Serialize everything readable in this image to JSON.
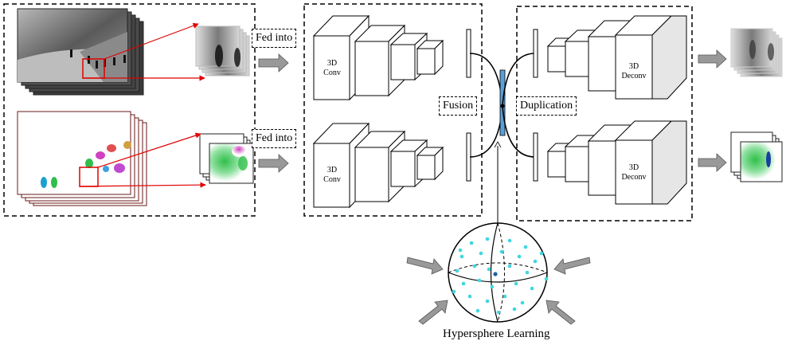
{
  "labels": {
    "fed_into": "Fed into",
    "fusion": "Fusion",
    "duplication": "Duplication",
    "hypersphere": "Hypersphere Learning",
    "conv_line1": "3D",
    "conv_line2": "Conv",
    "deconv_line1": "3D",
    "deconv_line2": "Deconv"
  },
  "colors": {
    "point": "#3fd7e0",
    "center_point": "#1f5fa0",
    "fusion_bar": "#5aa0d8",
    "arrow_fill": "#999999",
    "highlight": "#e00000"
  }
}
